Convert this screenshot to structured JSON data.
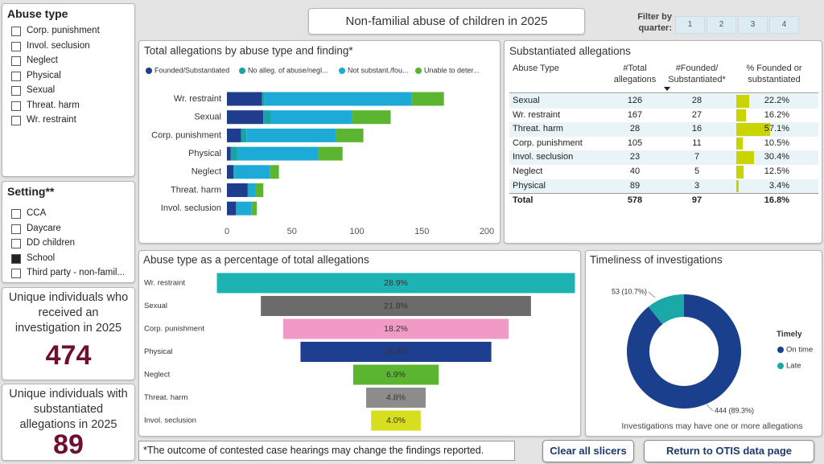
{
  "title": "Non-familial abuse of children in 2025",
  "quarter_filter": {
    "label": [
      "Filter by",
      "quarter:"
    ],
    "options": [
      "1",
      "2",
      "3",
      "4"
    ]
  },
  "slicers": [
    {
      "title": "Abuse type",
      "items": [
        {
          "label": "Corp. punishment",
          "checked": false
        },
        {
          "label": "Invol. seclusion",
          "checked": false
        },
        {
          "label": "Neglect",
          "checked": false
        },
        {
          "label": "Physical",
          "checked": false
        },
        {
          "label": "Sexual",
          "checked": false
        },
        {
          "label": "Threat. harm",
          "checked": false
        },
        {
          "label": "Wr. restraint",
          "checked": false
        }
      ]
    },
    {
      "title": "Setting**",
      "items": [
        {
          "label": "CCA",
          "checked": false
        },
        {
          "label": "Daycare",
          "checked": false
        },
        {
          "label": "DD children",
          "checked": false
        },
        {
          "label": "School",
          "checked": true
        },
        {
          "label": "Third party - non-famil...",
          "checked": false
        }
      ]
    }
  ],
  "kpis": [
    {
      "label": "Unique individuals who received an investigation in 2025",
      "value": 474
    },
    {
      "label": "Unique individuals with substantiated allegations in 2025",
      "value": 89
    }
  ],
  "chart_data": [
    {
      "type": "bar",
      "orientation": "horizontal",
      "stacked": true,
      "title": "Total allegations by abuse type and finding*",
      "categories": [
        "Wr. restraint",
        "Sexual",
        "Corp. punishment",
        "Physical",
        "Neglect",
        "Threat. harm",
        "Invol. seclusion"
      ],
      "series": [
        {
          "name": "Founded/Substantiated",
          "color": "#1f3d8c",
          "values": [
            27,
            28,
            11,
            3,
            5,
            16,
            7
          ]
        },
        {
          "name": "No alleg. of abuse/negl...",
          "color": "#17a3a8",
          "values": [
            2,
            6,
            4,
            5,
            1,
            1,
            1
          ]
        },
        {
          "name": "Not substant./fou...",
          "color": "#1eaad6",
          "values": [
            113,
            62,
            69,
            62,
            27,
            5,
            11
          ]
        },
        {
          "name": "Unable to deter...",
          "color": "#5cb531",
          "values": [
            25,
            30,
            21,
            19,
            7,
            6,
            4
          ]
        }
      ],
      "xlim": [
        0,
        200
      ],
      "xticks": [
        0,
        50,
        100,
        150,
        200
      ],
      "grid": false,
      "legend": "top"
    },
    {
      "type": "funnel",
      "title": "Abuse type as a percentage of total allegations",
      "categories": [
        "Wr. restraint",
        "Sexual",
        "Corp. punishment",
        "Physical",
        "Neglect",
        "Threat. harm",
        "Invol. seclusion"
      ],
      "values": [
        28.9,
        21.8,
        18.2,
        15.4,
        6.9,
        4.8,
        4.0
      ],
      "value_labels": [
        "28.9%",
        "21.8%",
        "18.2%",
        "15.4%",
        "6.9%",
        "4.8%",
        "4.0%"
      ],
      "colors": [
        "#1db3b3",
        "#6b6b6b",
        "#f29ac6",
        "#1e3f8f",
        "#5cb531",
        "#8c8c8c",
        "#d6de1e"
      ]
    },
    {
      "type": "donut",
      "title": "Timeliness of investigations",
      "legend_title": "Timely",
      "categories": [
        "On time",
        "Late"
      ],
      "values": [
        444,
        53
      ],
      "value_labels": [
        "444 (89.3%)",
        "53 (10.7%)"
      ],
      "colors": [
        "#1a3f8c",
        "#1aa8a8"
      ],
      "note": "Investigations may have one or more allegations",
      "legend": "right"
    }
  ],
  "substantiated_table": {
    "title": "Substantiated allegations",
    "headers": [
      "Abuse Type",
      "#Total allegations",
      "#Founded/ Substantiated*",
      "% Founded or substantiated"
    ],
    "rows": [
      {
        "type": "Sexual",
        "total": 126,
        "founded": 28,
        "pct": 22.2,
        "pct_label": "22.2%"
      },
      {
        "type": "Wr. restraint",
        "total": 167,
        "founded": 27,
        "pct": 16.2,
        "pct_label": "16.2%"
      },
      {
        "type": "Threat. harm",
        "total": 28,
        "founded": 16,
        "pct": 57.1,
        "pct_label": "57.1%"
      },
      {
        "type": "Corp. punishment",
        "total": 105,
        "founded": 11,
        "pct": 10.5,
        "pct_label": "10.5%"
      },
      {
        "type": "Invol. seclusion",
        "total": 23,
        "founded": 7,
        "pct": 30.4,
        "pct_label": "30.4%"
      },
      {
        "type": "Neglect",
        "total": 40,
        "founded": 5,
        "pct": 12.5,
        "pct_label": "12.5%"
      },
      {
        "type": "Physical",
        "total": 89,
        "founded": 3,
        "pct": 3.4,
        "pct_label": "3.4%"
      }
    ],
    "total": {
      "type": "Total",
      "total": 578,
      "founded": 97,
      "pct_label": "16.8%"
    },
    "bar_color": "#c9d400"
  },
  "footnote": "*The outcome of contested case hearings may change the findings reported.",
  "buttons": [
    "Clear all slicers",
    "Return to OTIS data page"
  ]
}
